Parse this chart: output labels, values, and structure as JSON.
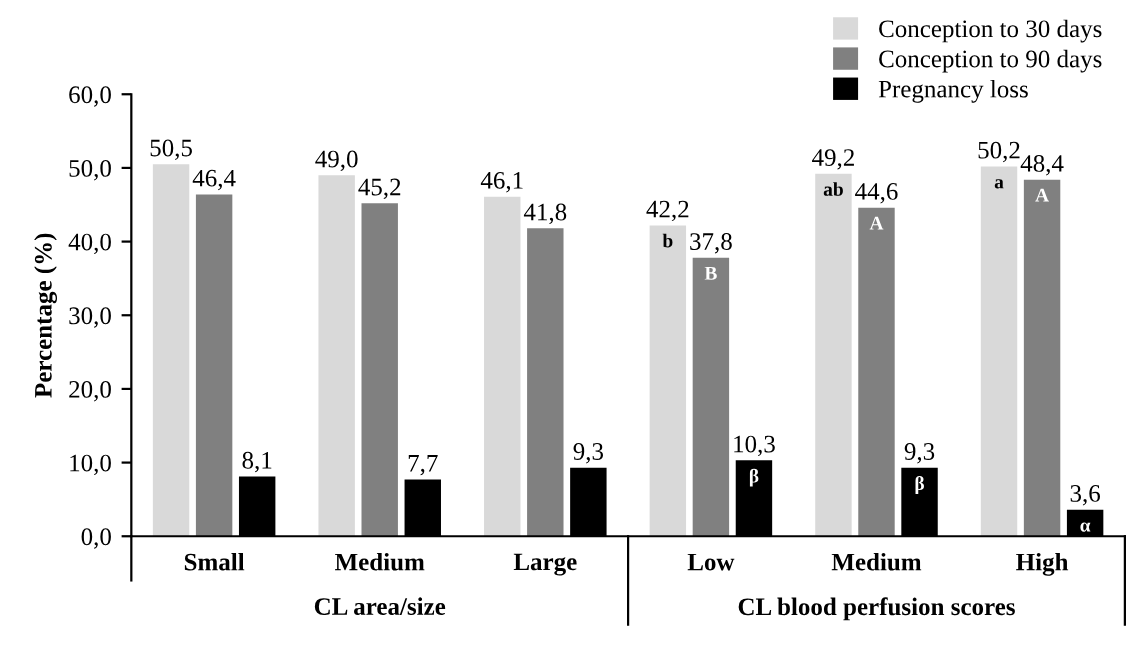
{
  "chart_data": {
    "type": "bar",
    "ylabel": "Percentage (%)",
    "categories": [
      "Small",
      "Medium",
      "Large",
      "Low",
      "Medium",
      "High"
    ],
    "series": [
      {
        "name": "Conception to 30 days",
        "color": "#d9d9d9",
        "values": [
          50.5,
          49.0,
          46.1,
          42.2,
          49.2,
          50.2
        ],
        "value_labels": [
          "50,5",
          "49,0",
          "46,1",
          "42,2",
          "49,2",
          "50,2"
        ]
      },
      {
        "name": "Conception to 90 days",
        "color": "#808080",
        "values": [
          46.4,
          45.2,
          41.8,
          37.8,
          44.6,
          48.4
        ],
        "value_labels": [
          "46,4",
          "45,2",
          "41,8",
          "37,8",
          "44,6",
          "48,4"
        ]
      },
      {
        "name": "Pregnancy loss",
        "color": "#000000",
        "values": [
          8.1,
          7.7,
          9.3,
          10.3,
          9.3,
          3.6
        ],
        "value_labels": [
          "8,1",
          "7,7",
          "9,3",
          "10,3",
          "9,3",
          "3,6"
        ]
      }
    ],
    "annotations": [
      "CL area/size",
      "CL blood perfusion scores",
      "b",
      "B",
      "β",
      "ab",
      "A",
      "β",
      "a",
      "A",
      "α"
    ],
    "ylim": [
      0,
      60
    ],
    "yticks": [
      {
        "value": 0,
        "label": "0,0"
      },
      {
        "value": 10,
        "label": "10,0"
      },
      {
        "value": 20,
        "label": "20,0"
      },
      {
        "value": 30,
        "label": "30,0"
      },
      {
        "value": 40,
        "label": "40,0"
      },
      {
        "value": 50,
        "label": "50,0"
      },
      {
        "value": 60,
        "label": "60,0"
      }
    ],
    "legend": "top right",
    "grid": false
  }
}
